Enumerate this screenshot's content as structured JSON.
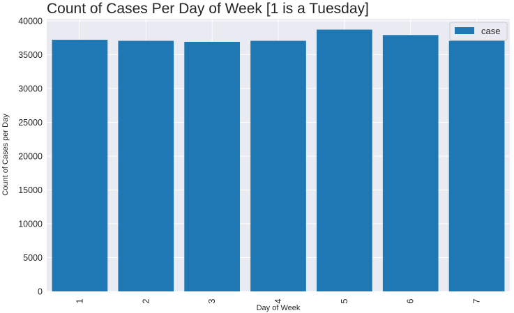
{
  "chart_data": {
    "type": "bar",
    "title": "Count of Cases Per Day of Week [1 is a Tuesday]",
    "xlabel": "Day of Week",
    "ylabel": "Count of Cases per Day",
    "categories": [
      "1",
      "2",
      "3",
      "4",
      "5",
      "6",
      "7"
    ],
    "series": [
      {
        "name": "case",
        "values": [
          37200,
          37050,
          36900,
          37050,
          38700,
          37900,
          37050
        ]
      }
    ],
    "ylim": [
      0,
      40300
    ],
    "yticks": [
      0,
      5000,
      10000,
      15000,
      20000,
      25000,
      30000,
      35000,
      40000
    ],
    "grid": true,
    "legend": "top-right",
    "colors": {
      "bar": "#1f77b4",
      "background": "#eaeaf2",
      "grid": "#ffffff"
    }
  }
}
